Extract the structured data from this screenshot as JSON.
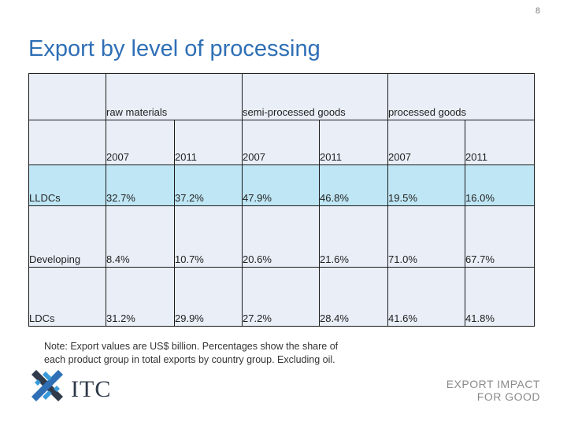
{
  "page_number": "8",
  "title": "Export by level of processing",
  "table": {
    "groups": [
      "raw materials",
      "semi-processed goods",
      "processed goods"
    ],
    "years": [
      "2007",
      "2011",
      "2007",
      "2011",
      "2007",
      "2011"
    ],
    "rows": [
      {
        "label": "LLDCs",
        "values": [
          "32.7%",
          "37.2%",
          "47.9%",
          "46.8%",
          "19.5%",
          "16.0%"
        ]
      },
      {
        "label": "Developing",
        "values": [
          "8.4%",
          "10.7%",
          "20.6%",
          "21.6%",
          "71.0%",
          "67.7%"
        ]
      },
      {
        "label": "LDCs",
        "values": [
          "31.2%",
          "29.9%",
          "27.2%",
          "28.4%",
          "41.6%",
          "41.8%"
        ]
      }
    ]
  },
  "note_line1": "Note: Export values are US$ billion. Percentages show the share of",
  "note_line2": "each product group in total exports by country group. Excluding oil.",
  "logo": {
    "text": "ITC",
    "colors": {
      "dark": "#2f3a4a",
      "blue": "#2f6fb5",
      "teal": "#3a9ad9"
    }
  },
  "tagline": {
    "line1": "EXPORT IMPACT",
    "line2": "FOR GOOD"
  }
}
